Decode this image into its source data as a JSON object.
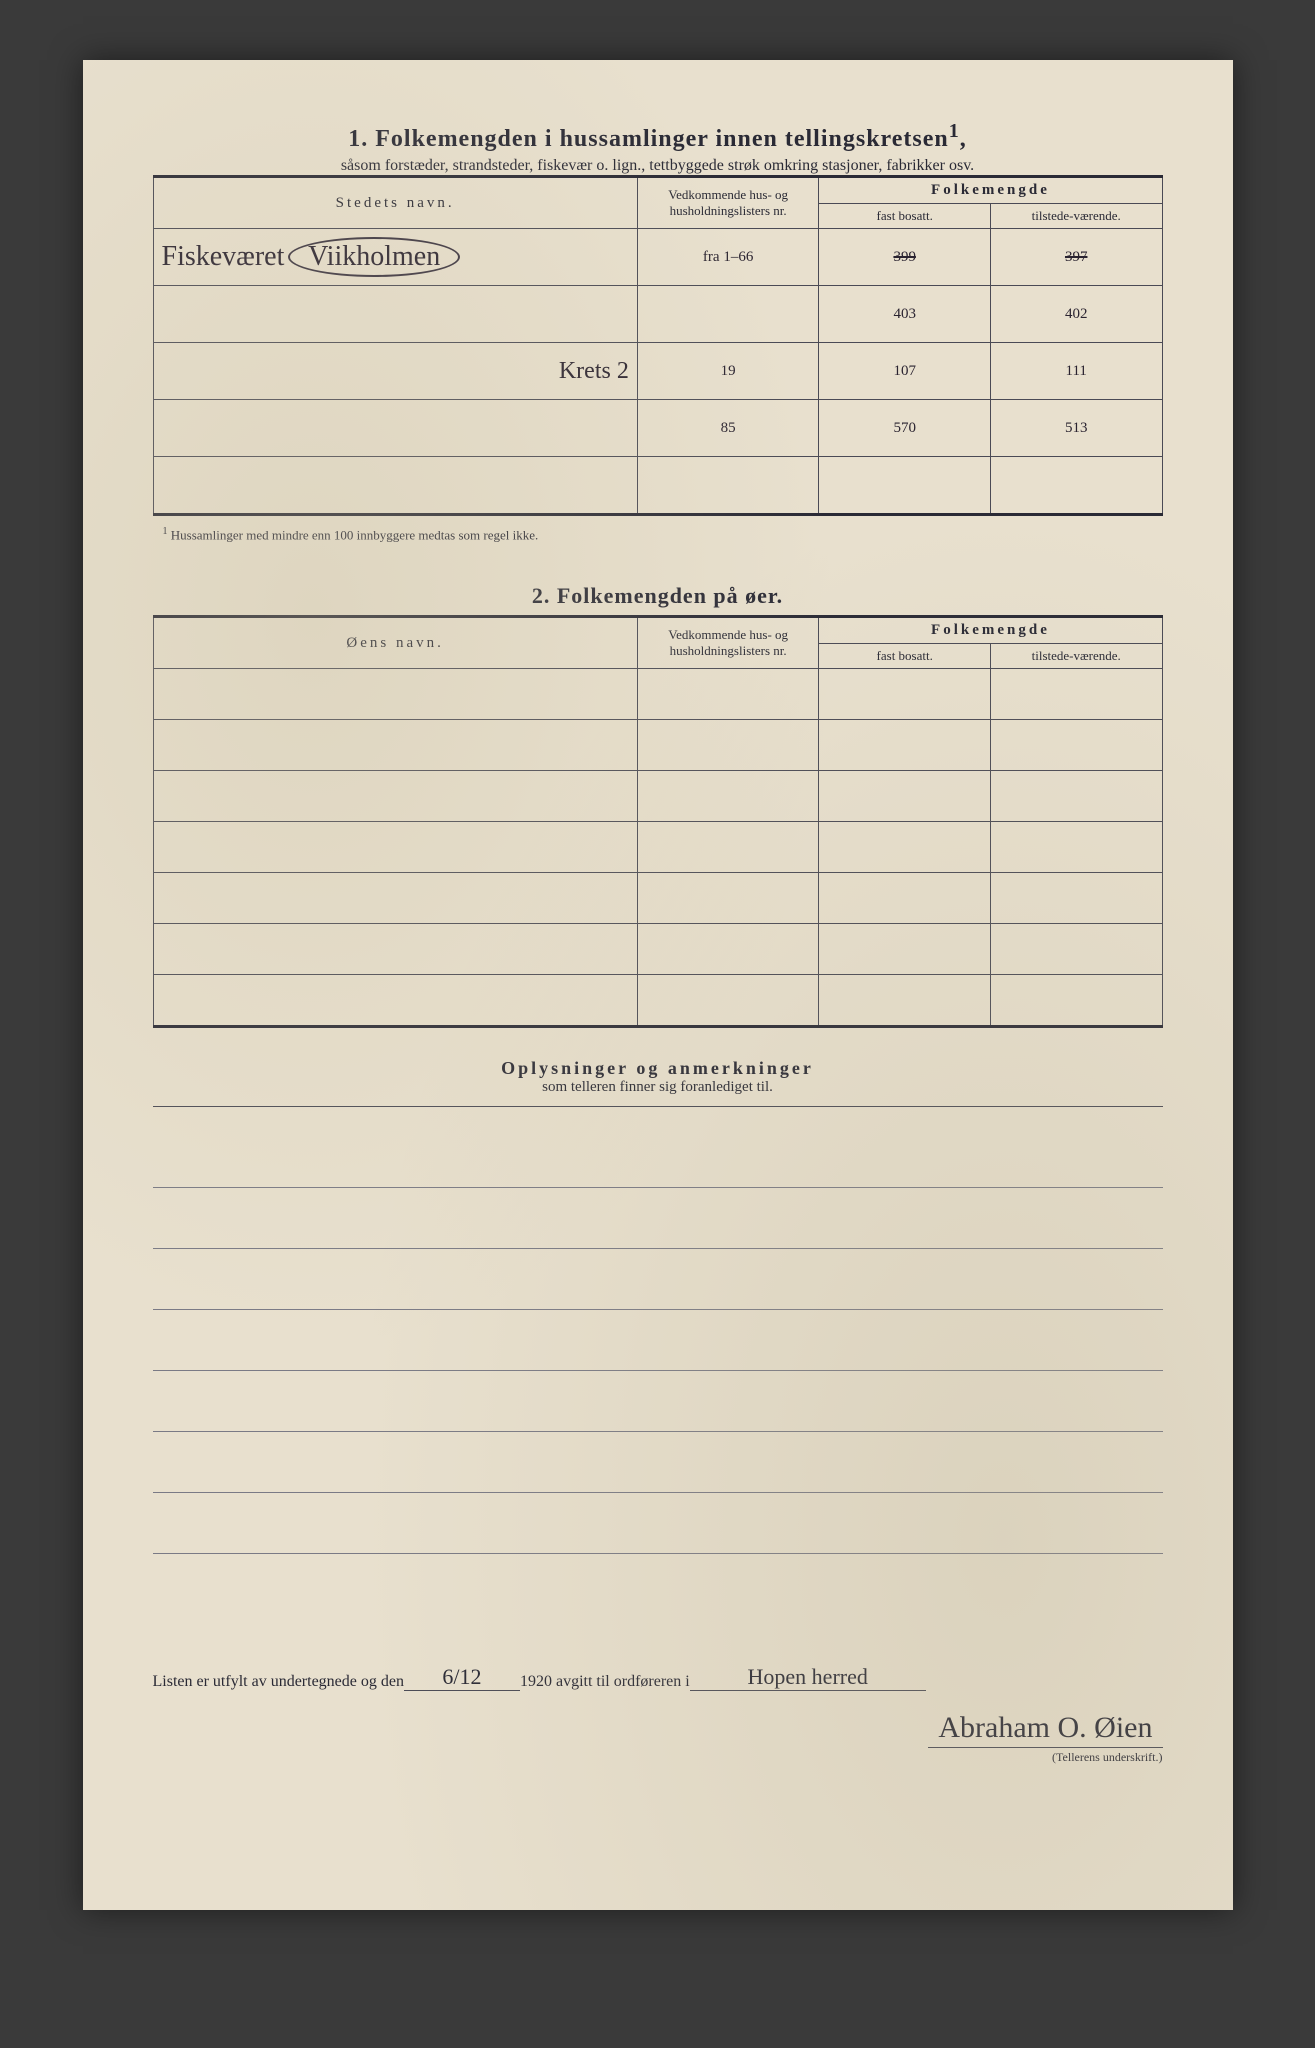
{
  "section1": {
    "number": "1.",
    "title": "Folkemengden i hussamlinger innen tellingskretsen",
    "title_sup": "1",
    "subtitle": "såsom forstæder, strandsteder, fiskevær o. lign., tettbyggede strøk omkring stasjoner, fabrikker osv.",
    "headers": {
      "name": "Stedets navn.",
      "nr": "Vedkommende hus- og husholdningslisters nr.",
      "pop": "Folkemengde",
      "fast": "fast bosatt.",
      "tilstede": "tilstede-værende."
    },
    "rows": [
      {
        "name_prefix": "Fiskeværet",
        "name_circled": "Viikholmen",
        "nr": "fra 1–66",
        "fast": "399",
        "fast_struck": true,
        "tilstede": "397",
        "tilstede_struck": true
      },
      {
        "name_prefix": "",
        "name_circled": "",
        "nr": "",
        "fast": "403",
        "tilstede": "402"
      },
      {
        "name_prefix": "",
        "name_circled": "Krets 2",
        "nr": "19",
        "fast": "107",
        "tilstede": "111"
      },
      {
        "name_prefix": "",
        "name_circled": "",
        "nr": "85",
        "fast": "570",
        "tilstede": "513"
      },
      {
        "name_prefix": "",
        "name_circled": "",
        "nr": "",
        "fast": "",
        "tilstede": ""
      }
    ],
    "footnote_sup": "1",
    "footnote": "Hussamlinger med mindre enn 100 innbyggere medtas som regel ikke."
  },
  "section2": {
    "number": "2.",
    "title": "Folkemengden på øer.",
    "headers": {
      "name": "Øens navn.",
      "nr": "Vedkommende hus- og husholdningslisters nr.",
      "pop": "Folkemengde",
      "fast": "fast bosatt.",
      "tilstede": "tilstede-værende."
    },
    "row_count": 7
  },
  "remarks": {
    "title": "Oplysninger og anmerkninger",
    "subtitle": "som telleren finner sig foranlediget til.",
    "line_count": 7
  },
  "signature": {
    "prefix": "Listen er utfylt av undertegnede og den",
    "date": "6/12",
    "year": "1920",
    "mid": "avgitt til ordføreren i",
    "place": "Hopen herred",
    "name": "Abraham O. Øien",
    "caption": "(Tellerens underskrift.)"
  },
  "colors": {
    "paper": "#e8e0ce",
    "ink": "#2a2a35",
    "pencil": "#3a3340",
    "background": "#3a3a3a"
  }
}
